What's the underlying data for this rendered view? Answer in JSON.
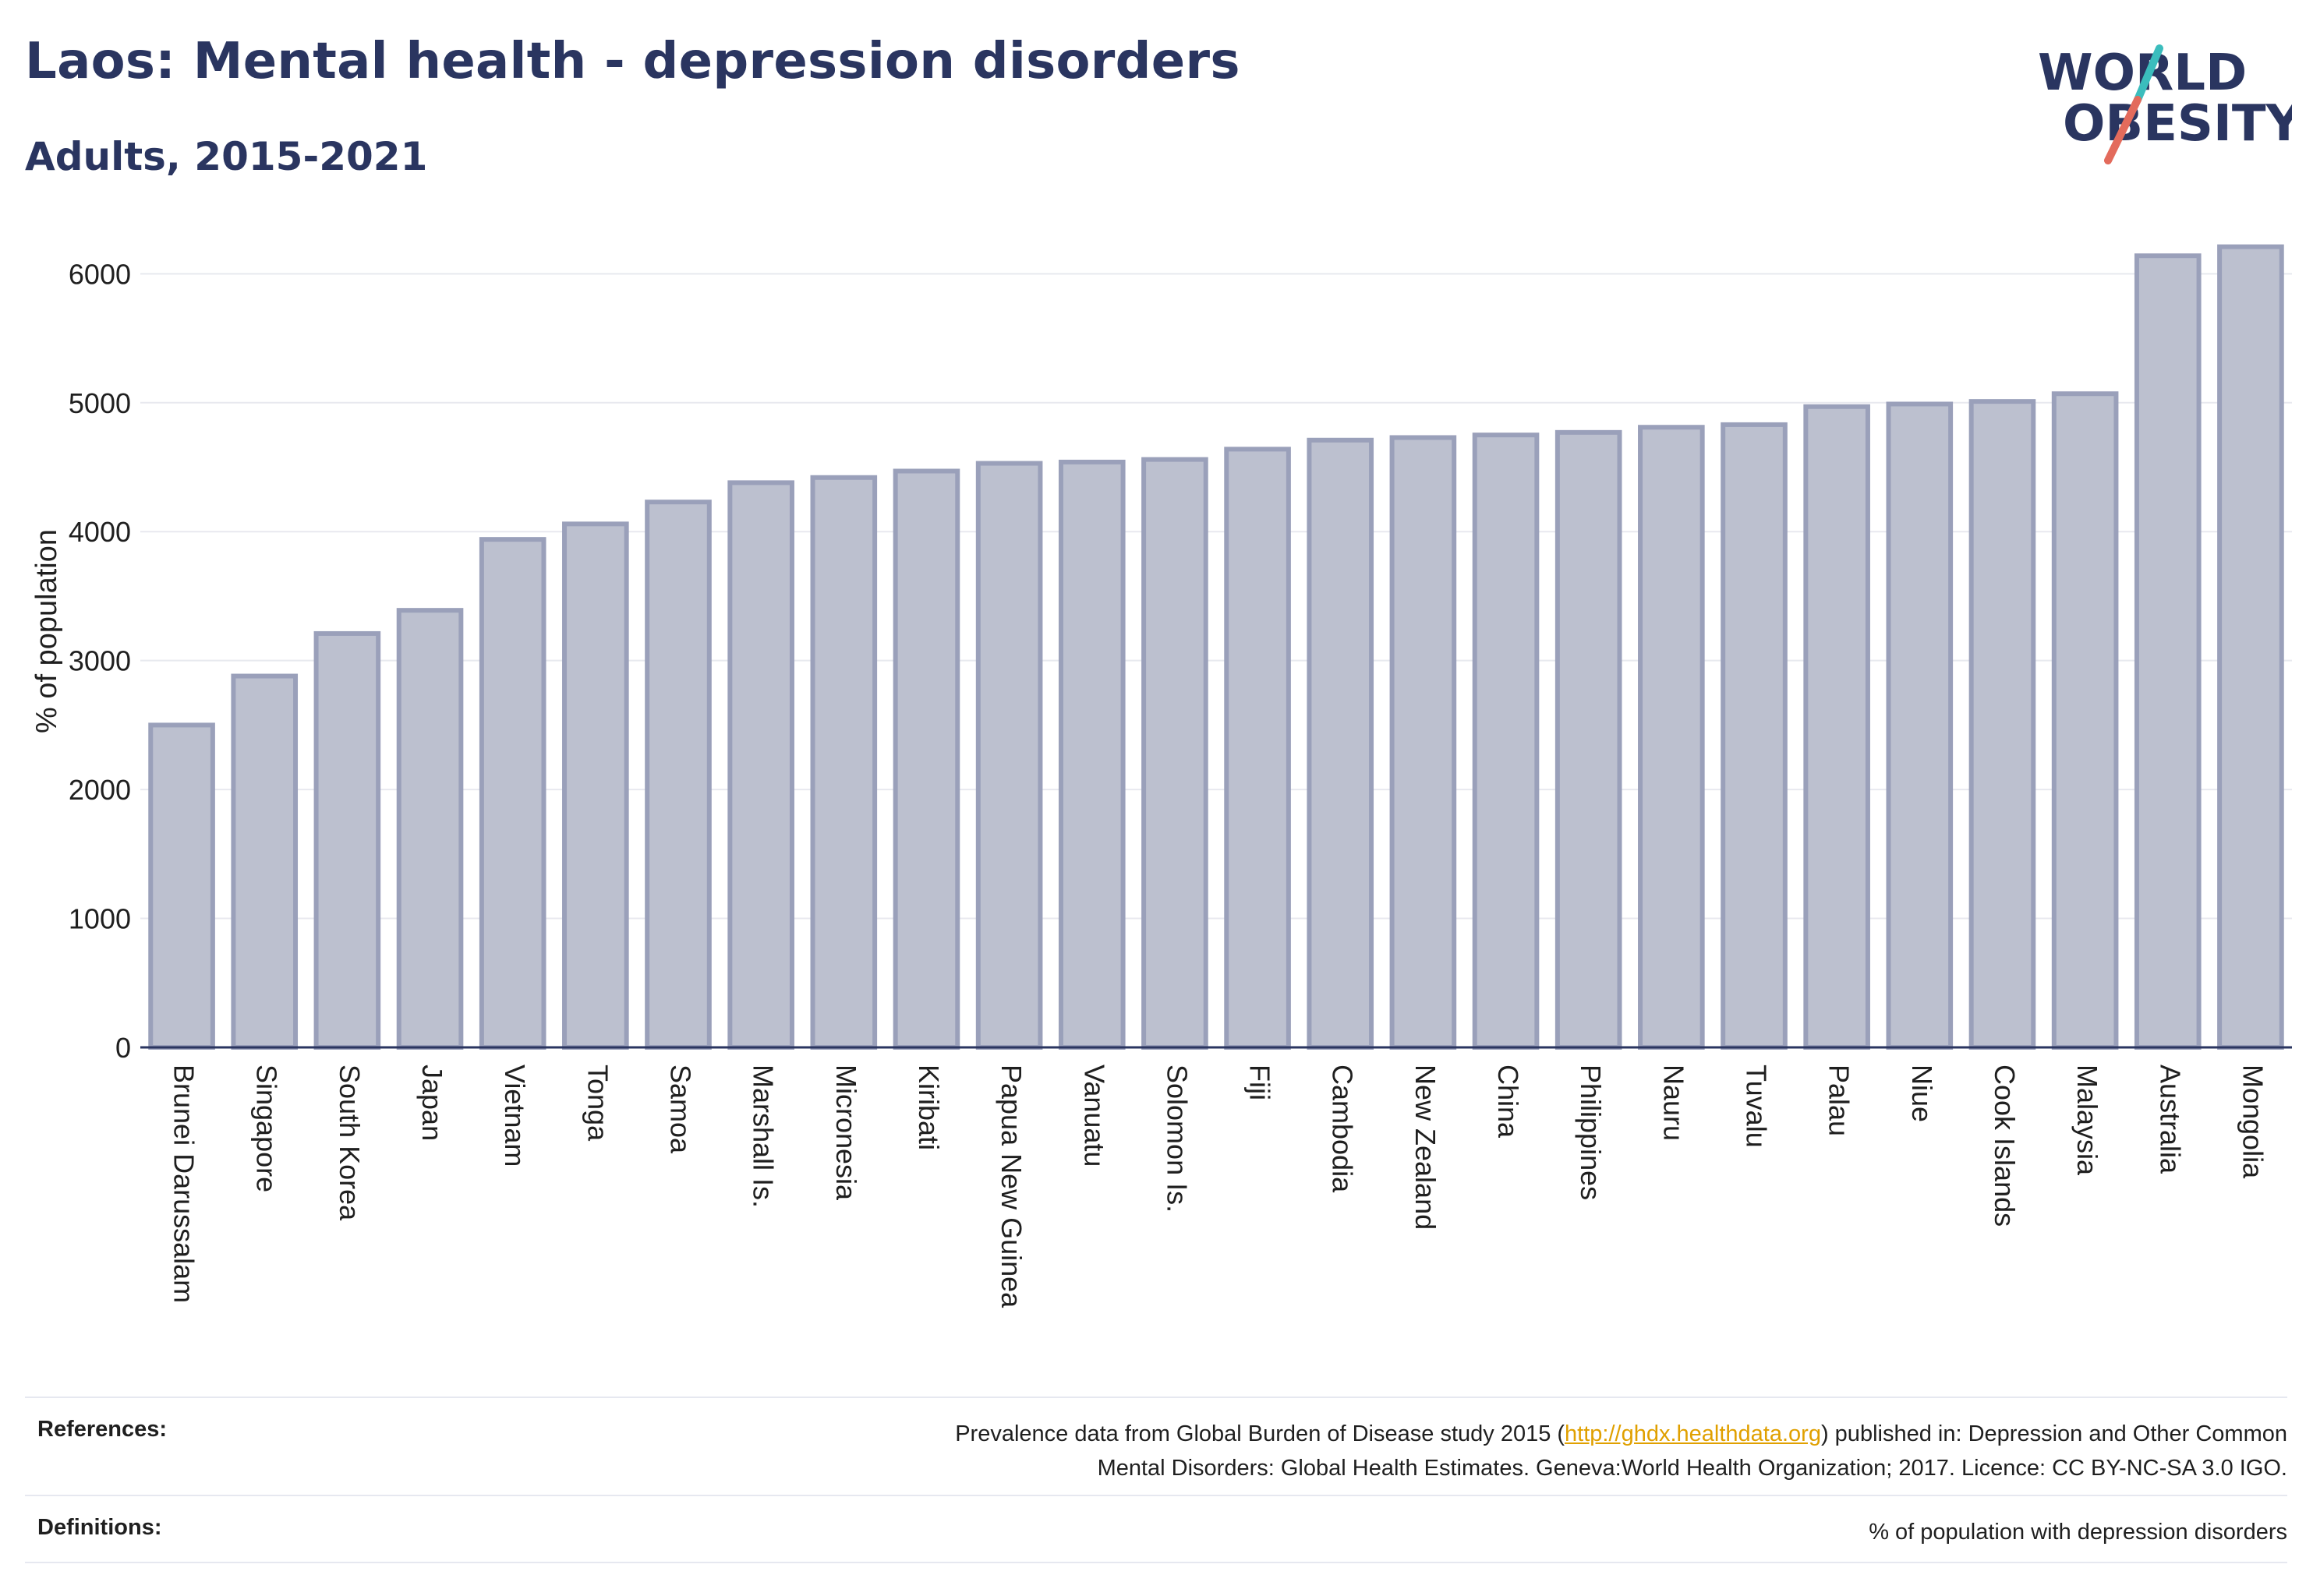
{
  "header": {
    "title": "Laos: Mental health - depression disorders",
    "subtitle": "Adults, 2015-2021",
    "logo_line1": "WORLD",
    "logo_line2": "OBESITY"
  },
  "colors": {
    "bar_fill": "#bcc0cf",
    "bar_stroke": "#9aa0ba",
    "text": "#2a3560",
    "grid": "#e8e9ef",
    "logo_slash_top": "#3bbdbd",
    "logo_slash_bottom": "#e36b5c",
    "link": "#e0a000"
  },
  "chart_data": {
    "type": "bar",
    "title": "",
    "xlabel": "",
    "ylabel": "% of population",
    "ylim": [
      0,
      6250
    ],
    "yticks": [
      0,
      1000,
      2000,
      3000,
      4000,
      5000,
      6000
    ],
    "grid": true,
    "categories": [
      "Brunei Darussalam",
      "Singapore",
      "South Korea",
      "Japan",
      "Vietnam",
      "Tonga",
      "Samoa",
      "Marshall Is.",
      "Micronesia",
      "Kiribati",
      "Papua New Guinea",
      "Vanuatu",
      "Solomon Is.",
      "Fiji",
      "Cambodia",
      "New Zealand",
      "China",
      "Philippines",
      "Nauru",
      "Tuvalu",
      "Palau",
      "Niue",
      "Cook Islands",
      "Malaysia",
      "Australia",
      "Mongolia"
    ],
    "values": [
      2500,
      2880,
      3210,
      3390,
      3940,
      4060,
      4230,
      4380,
      4420,
      4470,
      4530,
      4540,
      4560,
      4640,
      4710,
      4730,
      4750,
      4770,
      4810,
      4830,
      4970,
      4990,
      5010,
      5070,
      6140,
      6210
    ]
  },
  "footer": {
    "references_label": "References:",
    "references_text_before": "Prevalence data from Global Burden of Disease study 2015 (",
    "references_link": "http://ghdx.healthdata.org",
    "references_text_after_line1": ") published in: Depression and Other Common",
    "references_text_line2": "Mental Disorders: Global Health Estimates. Geneva:World Health Organization; 2017. Licence: CC BY-NC-SA 3.0 IGO.",
    "definitions_label": "Definitions:",
    "definitions_text": "% of population with depression disorders"
  }
}
